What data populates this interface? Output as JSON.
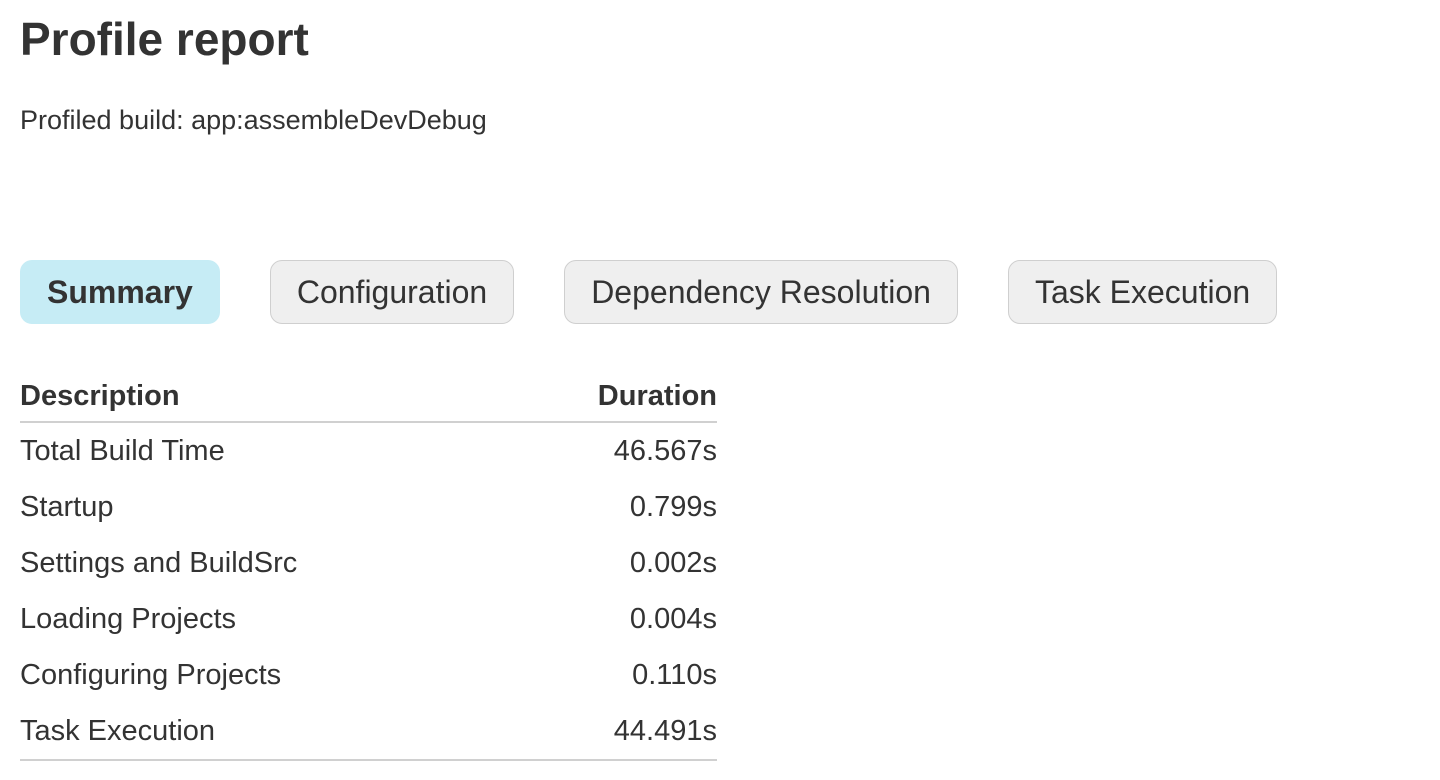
{
  "page": {
    "title": "Profile report",
    "subtitle": "Profiled build: app:assembleDevDebug"
  },
  "tabs": [
    {
      "label": "Summary",
      "selected": true
    },
    {
      "label": "Configuration",
      "selected": false
    },
    {
      "label": "Dependency Resolution",
      "selected": false
    },
    {
      "label": "Task Execution",
      "selected": false
    }
  ],
  "summary_table": {
    "columns": [
      "Description",
      "Duration"
    ],
    "rows": [
      {
        "description": "Total Build Time",
        "duration": "46.567s"
      },
      {
        "description": "Startup",
        "duration": "0.799s"
      },
      {
        "description": "Settings and BuildSrc",
        "duration": "0.002s"
      },
      {
        "description": "Loading Projects",
        "duration": "0.004s"
      },
      {
        "description": "Configuring Projects",
        "duration": "0.110s"
      },
      {
        "description": "Task Execution",
        "duration": "44.491s"
      }
    ]
  },
  "colors": {
    "text": "#333333",
    "selected_tab_background": "#c6ecf5",
    "tab_background": "#efefef",
    "tab_border": "#cfcfcf",
    "table_rule": "#d0d0d0"
  }
}
